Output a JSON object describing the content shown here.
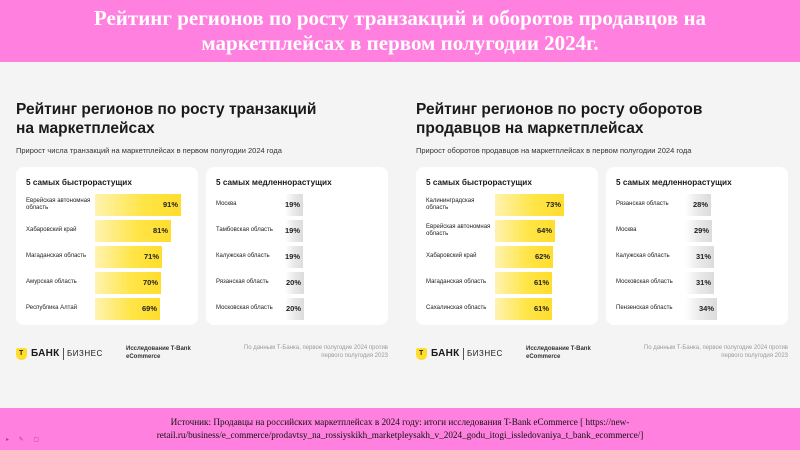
{
  "banner": {
    "title": "Рейтинг регионов по росту транзакций и оборотов продавцов на маркетплейсах в первом полугодии 2024г."
  },
  "chart_data": [
    {
      "type": "bar",
      "title": "Рейтинг регионов по росту транзакций на маркетплейсах",
      "subtitle": "Прирост числа транзакций на маркетплейсах в первом полугодии 2024 года",
      "fast": {
        "heading": "5 самых быстрорастущих",
        "rows": [
          {
            "label": "Еврейская автономная область",
            "value": 91,
            "display": "91%"
          },
          {
            "label": "Хабаровский край",
            "value": 81,
            "display": "81%"
          },
          {
            "label": "Магаданская область",
            "value": 71,
            "display": "71%"
          },
          {
            "label": "Амурская область",
            "value": 70,
            "display": "70%"
          },
          {
            "label": "Республика Алтай",
            "value": 69,
            "display": "69%"
          }
        ]
      },
      "slow": {
        "heading": "5 самых медленнорастущих",
        "rows": [
          {
            "label": "Москва",
            "value": 19,
            "display": "19%"
          },
          {
            "label": "Тамбовская область",
            "value": 19,
            "display": "19%"
          },
          {
            "label": "Калужская область",
            "value": 19,
            "display": "19%"
          },
          {
            "label": "Рязанская область",
            "value": 20,
            "display": "20%"
          },
          {
            "label": "Московская область",
            "value": 20,
            "display": "20%"
          }
        ]
      },
      "logo": {
        "brand": "БАНК",
        "mark": "Т",
        "sub": "БИЗНЕС"
      },
      "study": "Исследование T-Bank eCommerce",
      "note": "По данным Т-Банка, первое полугодие 2024 против первого полугодия 2023"
    },
    {
      "type": "bar",
      "title": "Рейтинг регионов по росту оборотов продавцов на маркетплейсах",
      "subtitle": "Прирост оборотов продавцов на маркетплейсах в первом полугодии 2024 года",
      "fast": {
        "heading": "5 самых быстрорастущих",
        "rows": [
          {
            "label": "Калининградская область",
            "value": 73,
            "display": "73%"
          },
          {
            "label": "Еврейская автономная область",
            "value": 64,
            "display": "64%"
          },
          {
            "label": "Хабаровский край",
            "value": 62,
            "display": "62%"
          },
          {
            "label": "Магаданская область",
            "value": 61,
            "display": "61%"
          },
          {
            "label": "Сахалинская область",
            "value": 61,
            "display": "61%"
          }
        ]
      },
      "slow": {
        "heading": "5 самых медленнорастущих",
        "rows": [
          {
            "label": "Рязанская область",
            "value": 28,
            "display": "28%"
          },
          {
            "label": "Москва",
            "value": 29,
            "display": "29%"
          },
          {
            "label": "Калужская область",
            "value": 31,
            "display": "31%"
          },
          {
            "label": "Московская область",
            "value": 31,
            "display": "31%"
          },
          {
            "label": "Пензенская область",
            "value": 34,
            "display": "34%"
          }
        ]
      },
      "logo": {
        "brand": "БАНК",
        "mark": "Т",
        "sub": "БИЗНЕС"
      },
      "study": "Исследование T-Bank eCommerce",
      "note": "По данным Т-Банка, первое полугодие 2024 против первого полугодия 2023"
    }
  ],
  "source": "Источник: Продавцы на российских маркетплейсах в 2024 году: итоги исследования T-Bank eCommerce [ https://new-retail.ru/business/e_commerce/prodavtsy_na_rossiyskikh_marketpleysakh_v_2024_godu_itogi_issledovaniya_t_bank_ecommerce/]"
}
